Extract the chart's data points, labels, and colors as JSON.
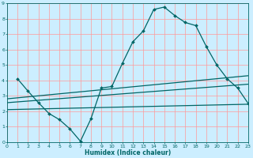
{
  "title": "",
  "xlabel": "Humidex (Indice chaleur)",
  "bg_color": "#cceeff",
  "line_color": "#006666",
  "grid_color": "#ff9999",
  "xlim": [
    0,
    23
  ],
  "ylim": [
    0,
    9
  ],
  "xticks": [
    0,
    1,
    2,
    3,
    4,
    5,
    6,
    7,
    8,
    9,
    10,
    11,
    12,
    13,
    14,
    15,
    16,
    17,
    18,
    19,
    20,
    21,
    22,
    23
  ],
  "yticks": [
    0,
    1,
    2,
    3,
    4,
    5,
    6,
    7,
    8,
    9
  ],
  "curve1_x": [
    1,
    2,
    3,
    4,
    5,
    6,
    7,
    8,
    9,
    10,
    11,
    12,
    13,
    14,
    15,
    16,
    17,
    18,
    19,
    20,
    21,
    22,
    23
  ],
  "curve1_y": [
    4.1,
    3.3,
    2.55,
    1.85,
    1.45,
    0.85,
    0.05,
    1.5,
    3.5,
    3.6,
    5.1,
    6.5,
    7.2,
    8.6,
    8.75,
    8.2,
    7.75,
    7.55,
    6.2,
    5.0,
    4.1,
    3.5,
    2.5
  ],
  "line2_x": [
    0,
    23
  ],
  "line2_y": [
    2.1,
    2.45
  ],
  "line3_x": [
    0,
    23
  ],
  "line3_y": [
    2.55,
    3.75
  ],
  "line4_x": [
    0,
    23
  ],
  "line4_y": [
    2.8,
    4.3
  ]
}
